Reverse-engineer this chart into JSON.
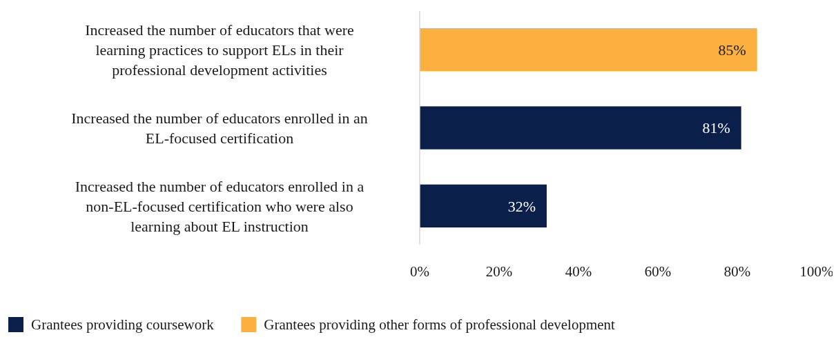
{
  "chart_data": {
    "type": "bar",
    "orientation": "horizontal",
    "stacked": true,
    "categories": [
      "Increased the number of educators that were learning practices to support ELs in their professional development activities",
      "Increased the number of educators enrolled in an EL-focused certification",
      "Increased the number of educators enrolled in a non-EL-focused certification who were also learning about EL instruction"
    ],
    "series": [
      {
        "name": "Grantees providing coursework",
        "color": "#0b1f4b",
        "values": [
          null,
          81,
          32
        ],
        "value_labels": [
          null,
          "81%",
          "32%"
        ]
      },
      {
        "name": "Grantees providing other forms of professional development",
        "color": "#fbb040",
        "values": [
          85,
          null,
          null
        ],
        "value_labels": [
          "85%",
          null,
          null
        ]
      }
    ],
    "xlim": [
      0,
      100
    ],
    "xticks": [
      {
        "value": 0,
        "label": "0%"
      },
      {
        "value": 20,
        "label": "20%"
      },
      {
        "value": 40,
        "label": "40%"
      },
      {
        "value": 60,
        "label": "60%"
      },
      {
        "value": 80,
        "label": "80%"
      },
      {
        "value": 100,
        "label": "100%"
      }
    ],
    "grid": false,
    "legend": "bottom"
  }
}
